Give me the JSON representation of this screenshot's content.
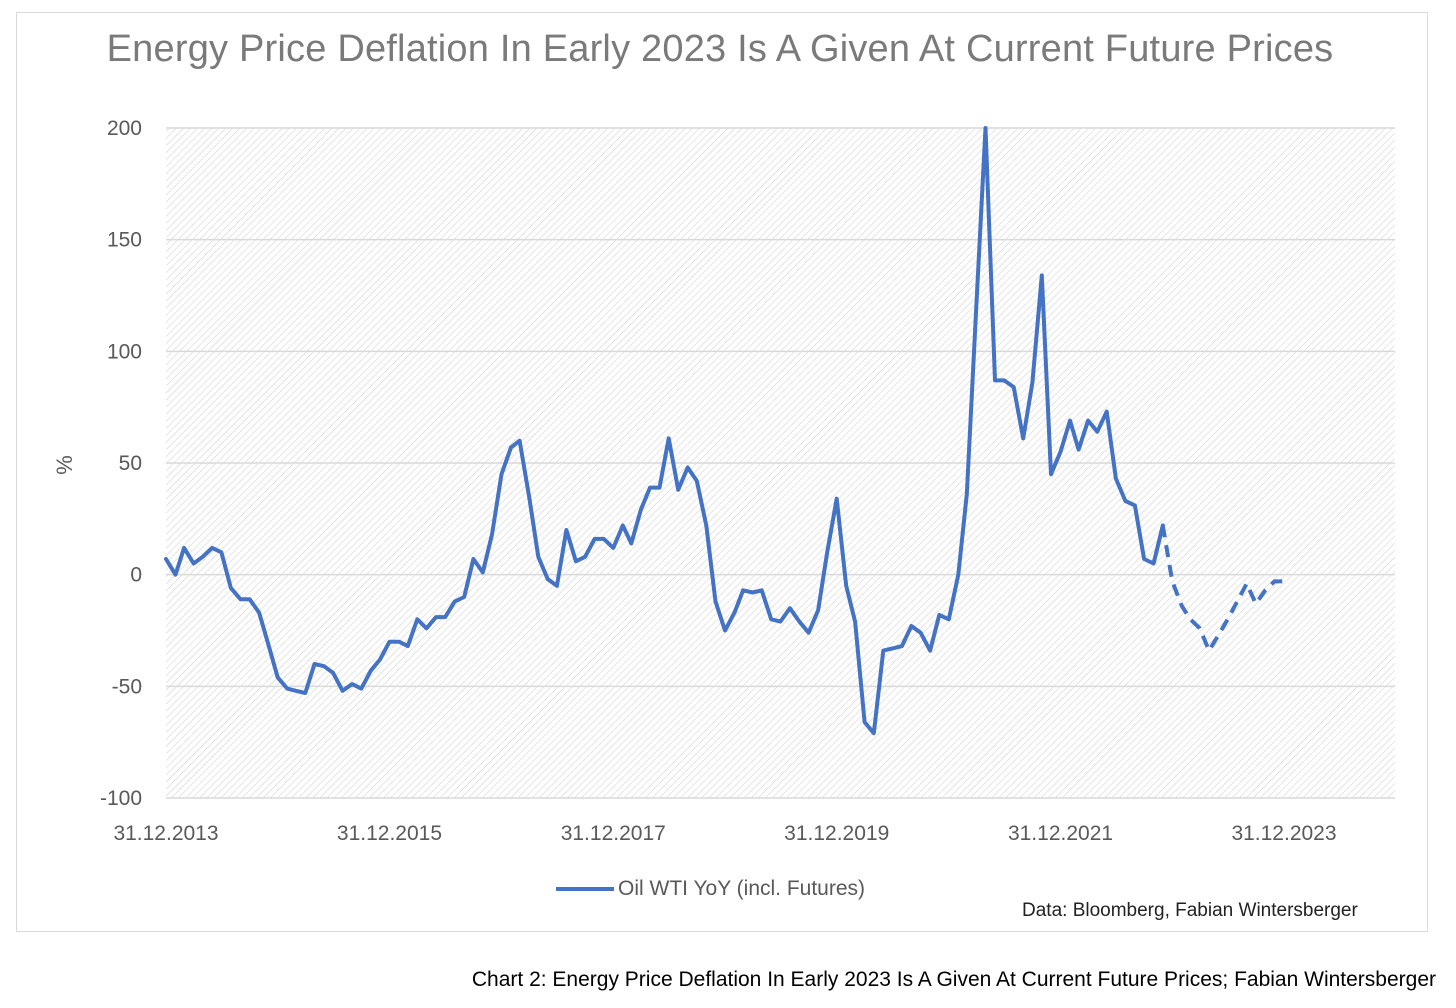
{
  "figure": {
    "title": "Energy Price Deflation In Early 2023 Is A Given At Current Future Prices",
    "credit": "Data: Bloomberg, Fabian Wintersberger",
    "caption": "Chart 2: Energy Price Deflation In Early 2023 Is A Given At Current Future Prices; Fabian Wintersberger"
  },
  "chart_data": {
    "type": "line",
    "title": "Energy Price Deflation In Early 2023 Is A Given At Current Future Prices",
    "ylabel": "%",
    "xlabel": "",
    "ylim": [
      -100,
      200
    ],
    "yticks": [
      200,
      150,
      100,
      50,
      0,
      -50,
      -100
    ],
    "xticks": [
      "31.12.2013",
      "31.12.2015",
      "31.12.2017",
      "31.12.2019",
      "31.12.2021",
      "31.12.2023"
    ],
    "grid": true,
    "legend_position": "bottom",
    "colors": {
      "series": "#4472c4",
      "grid": "#d9d9d9"
    },
    "series": [
      {
        "name": "Oil WTI YoY (incl. Futures)",
        "points": [
          [
            "2013-12-31",
            7
          ],
          [
            "2014-01-31",
            0
          ],
          [
            "2014-02-28",
            12
          ],
          [
            "2014-03-31",
            5
          ],
          [
            "2014-04-30",
            8
          ],
          [
            "2014-05-31",
            12
          ],
          [
            "2014-06-30",
            10
          ],
          [
            "2014-07-31",
            -6
          ],
          [
            "2014-08-31",
            -11
          ],
          [
            "2014-09-30",
            -11
          ],
          [
            "2014-10-31",
            -17
          ],
          [
            "2014-11-30",
            -31
          ],
          [
            "2014-12-31",
            -46
          ],
          [
            "2015-01-31",
            -51
          ],
          [
            "2015-02-28",
            -52
          ],
          [
            "2015-03-31",
            -53
          ],
          [
            "2015-04-30",
            -40
          ],
          [
            "2015-05-31",
            -41
          ],
          [
            "2015-06-30",
            -44
          ],
          [
            "2015-07-31",
            -52
          ],
          [
            "2015-08-31",
            -49
          ],
          [
            "2015-09-30",
            -51
          ],
          [
            "2015-10-31",
            -43
          ],
          [
            "2015-11-30",
            -38
          ],
          [
            "2015-12-31",
            -30
          ],
          [
            "2016-01-31",
            -30
          ],
          [
            "2016-02-29",
            -32
          ],
          [
            "2016-03-31",
            -20
          ],
          [
            "2016-04-30",
            -24
          ],
          [
            "2016-05-31",
            -19
          ],
          [
            "2016-06-30",
            -19
          ],
          [
            "2016-07-31",
            -12
          ],
          [
            "2016-08-31",
            -10
          ],
          [
            "2016-09-30",
            7
          ],
          [
            "2016-10-31",
            1
          ],
          [
            "2016-11-30",
            18
          ],
          [
            "2016-12-31",
            45
          ],
          [
            "2017-01-31",
            57
          ],
          [
            "2017-02-28",
            60
          ],
          [
            "2017-03-31",
            35
          ],
          [
            "2017-04-30",
            8
          ],
          [
            "2017-05-31",
            -2
          ],
          [
            "2017-06-30",
            -5
          ],
          [
            "2017-07-31",
            20
          ],
          [
            "2017-08-31",
            6
          ],
          [
            "2017-09-30",
            8
          ],
          [
            "2017-10-31",
            16
          ],
          [
            "2017-11-30",
            16
          ],
          [
            "2017-12-31",
            12
          ],
          [
            "2018-01-31",
            22
          ],
          [
            "2018-02-28",
            14
          ],
          [
            "2018-03-31",
            29
          ],
          [
            "2018-04-30",
            39
          ],
          [
            "2018-05-31",
            39
          ],
          [
            "2018-06-30",
            61
          ],
          [
            "2018-07-31",
            38
          ],
          [
            "2018-08-31",
            48
          ],
          [
            "2018-09-30",
            42
          ],
          [
            "2018-10-31",
            22
          ],
          [
            "2018-11-30",
            -12
          ],
          [
            "2018-12-31",
            -25
          ],
          [
            "2019-01-31",
            -17
          ],
          [
            "2019-02-28",
            -7
          ],
          [
            "2019-03-31",
            -8
          ],
          [
            "2019-04-30",
            -7
          ],
          [
            "2019-05-31",
            -20
          ],
          [
            "2019-06-30",
            -21
          ],
          [
            "2019-07-31",
            -15
          ],
          [
            "2019-08-31",
            -21
          ],
          [
            "2019-09-30",
            -26
          ],
          [
            "2019-10-31",
            -16
          ],
          [
            "2019-11-30",
            10
          ],
          [
            "2019-12-31",
            34
          ],
          [
            "2020-01-31",
            -5
          ],
          [
            "2020-02-29",
            -21
          ],
          [
            "2020-03-31",
            -66
          ],
          [
            "2020-04-30",
            -71
          ],
          [
            "2020-05-31",
            -34
          ],
          [
            "2020-06-30",
            -33
          ],
          [
            "2020-07-31",
            -32
          ],
          [
            "2020-08-31",
            -23
          ],
          [
            "2020-09-30",
            -26
          ],
          [
            "2020-10-31",
            -34
          ],
          [
            "2020-11-30",
            -18
          ],
          [
            "2020-12-31",
            -20
          ],
          [
            "2021-01-31",
            0
          ],
          [
            "2021-02-28",
            36
          ],
          [
            "2021-03-31",
            120
          ],
          [
            "2021-04-30",
            200
          ],
          [
            "2021-04-30",
            200
          ],
          [
            "2021-05-31",
            87
          ],
          [
            "2021-06-30",
            87
          ],
          [
            "2021-07-31",
            84
          ],
          [
            "2021-08-31",
            61
          ],
          [
            "2021-09-30",
            86
          ],
          [
            "2021-10-31",
            134
          ],
          [
            "2021-11-30",
            45
          ],
          [
            "2021-12-31",
            55
          ],
          [
            "2022-01-31",
            69
          ],
          [
            "2022-02-28",
            56
          ],
          [
            "2022-03-31",
            69
          ],
          [
            "2022-04-30",
            64
          ],
          [
            "2022-05-31",
            73
          ],
          [
            "2022-06-30",
            43
          ],
          [
            "2022-07-31",
            33
          ],
          [
            "2022-08-31",
            31
          ],
          [
            "2022-09-30",
            7
          ],
          [
            "2022-10-31",
            5
          ],
          [
            "2022-11-30",
            22
          ]
        ],
        "forecast_points": [
          [
            "2022-11-30",
            22
          ],
          [
            "2022-12-31",
            -3
          ],
          [
            "2023-01-31",
            -14
          ],
          [
            "2023-02-28",
            -20
          ],
          [
            "2023-03-31",
            -24
          ],
          [
            "2023-04-30",
            -34
          ],
          [
            "2023-05-31",
            -27
          ],
          [
            "2023-06-30",
            -20
          ],
          [
            "2023-07-31",
            -12
          ],
          [
            "2023-08-31",
            -4
          ],
          [
            "2023-09-30",
            -13
          ],
          [
            "2023-10-31",
            -7
          ],
          [
            "2023-11-30",
            -3
          ],
          [
            "2023-12-31",
            -3
          ]
        ]
      }
    ]
  }
}
